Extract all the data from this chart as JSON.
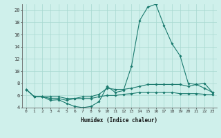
{
  "xlabel": "Humidex (Indice chaleur)",
  "background_color": "#cff0eb",
  "grid_color": "#a8d8d0",
  "line_color": "#1a7a6e",
  "xlim": [
    -0.5,
    23.5
  ],
  "ylim": [
    4,
    21
  ],
  "xticks": [
    0,
    1,
    2,
    3,
    4,
    5,
    6,
    7,
    8,
    9,
    10,
    11,
    12,
    13,
    14,
    15,
    16,
    17,
    18,
    19,
    20,
    21,
    22,
    23
  ],
  "yticks": [
    4,
    6,
    8,
    10,
    12,
    14,
    16,
    18,
    20
  ],
  "series": [
    [
      7.0,
      5.8,
      5.8,
      5.2,
      5.3,
      4.7,
      4.2,
      4.0,
      4.2,
      5.0,
      7.5,
      6.5,
      6.8,
      10.8,
      18.3,
      20.5,
      21.0,
      17.5,
      14.5,
      12.5,
      8.0,
      7.8,
      8.0,
      6.5
    ],
    [
      7.0,
      5.8,
      5.8,
      5.5,
      5.5,
      5.2,
      5.5,
      5.8,
      5.8,
      6.2,
      7.2,
      7.0,
      7.0,
      7.2,
      7.5,
      7.8,
      7.8,
      7.8,
      7.8,
      7.8,
      7.5,
      7.8,
      7.2,
      6.5
    ],
    [
      7.0,
      5.8,
      5.8,
      5.8,
      5.8,
      5.5,
      5.5,
      5.5,
      5.5,
      5.8,
      6.0,
      6.0,
      6.2,
      6.3,
      6.5,
      6.5,
      6.5,
      6.5,
      6.5,
      6.3,
      6.3,
      6.3,
      6.2,
      6.2
    ]
  ]
}
